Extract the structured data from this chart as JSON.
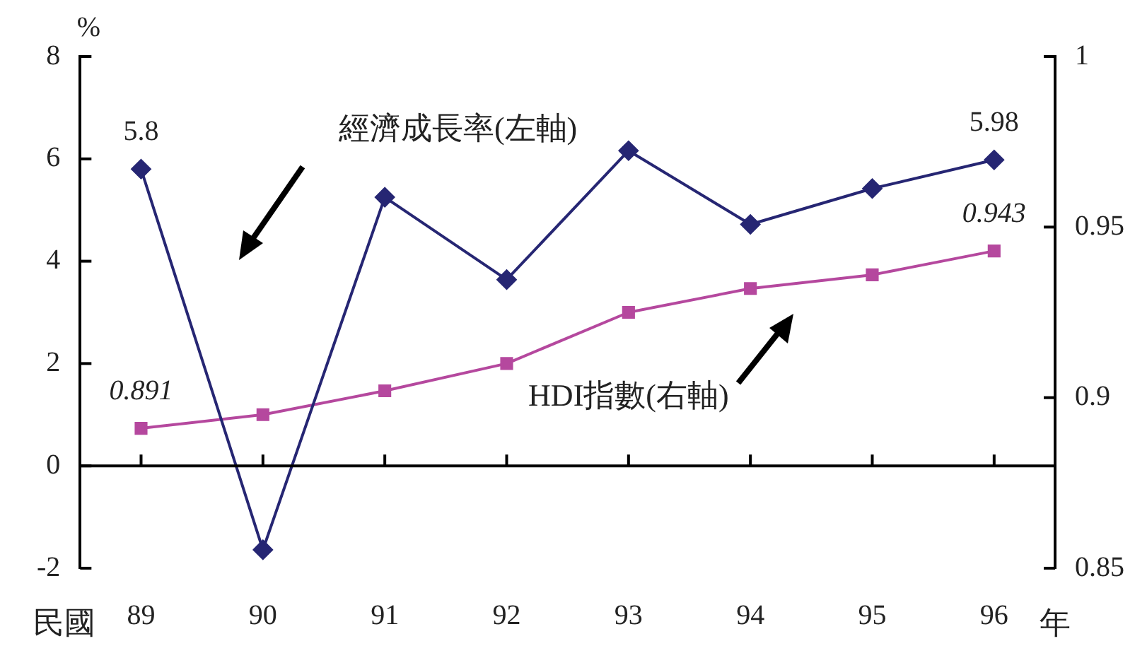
{
  "chart_data": {
    "type": "line",
    "categories": [
      "89",
      "90",
      "91",
      "92",
      "93",
      "94",
      "95",
      "96"
    ],
    "series": [
      {
        "name": "經濟成長率(左軸)",
        "color": "#262673",
        "marker": "diamond",
        "values": [
          5.8,
          -1.64,
          5.25,
          3.64,
          6.16,
          4.72,
          5.42,
          5.98
        ],
        "value_labels": [
          "5.8",
          null,
          null,
          null,
          null,
          null,
          null,
          "5.98"
        ]
      },
      {
        "name": "HDI指數(右軸)",
        "color": "#b5489e",
        "marker": "square",
        "axis": "y2",
        "values": [
          0.891,
          0.895,
          0.902,
          0.91,
          0.925,
          0.932,
          0.936,
          0.943
        ],
        "value_labels": [
          "0.891",
          null,
          null,
          null,
          null,
          null,
          null,
          "0.943"
        ]
      }
    ],
    "ylabel": "%",
    "ylim": [
      -2,
      8
    ],
    "yticks": [
      -2,
      0,
      2,
      4,
      6,
      8
    ],
    "y2lim": [
      0.85,
      1
    ],
    "y2ticks": [
      0.85,
      0.9,
      0.95,
      1
    ],
    "annotations": [
      "民國",
      "年"
    ],
    "legend": false,
    "line_style": "solid"
  }
}
